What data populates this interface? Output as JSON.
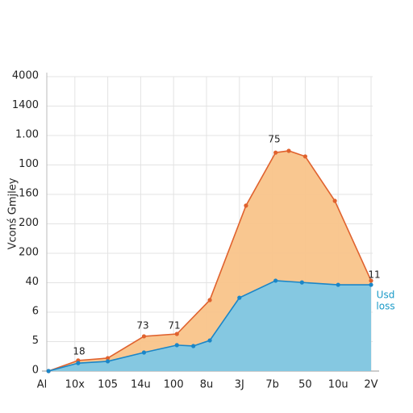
{
  "chart_data": {
    "type": "area",
    "y_label": "Vconś Gmjley",
    "xlim": [
      0,
      10
    ],
    "xticks": [
      {
        "value": 0,
        "label": "Al"
      },
      {
        "value": 1,
        "label": "10x"
      },
      {
        "value": 2,
        "label": "105"
      },
      {
        "value": 3,
        "label": "14u"
      },
      {
        "value": 4,
        "label": "100"
      },
      {
        "value": 5,
        "label": "8u"
      },
      {
        "value": 6,
        "label": "3J"
      },
      {
        "value": 7,
        "label": "7b"
      },
      {
        "value": 8,
        "label": "50"
      },
      {
        "value": 9,
        "label": "10u"
      },
      {
        "value": 10,
        "label": "2V"
      }
    ],
    "ylim": [
      0,
      10
    ],
    "yticks": [
      0,
      {
        "value": 1,
        "label": "5"
      },
      {
        "value": 2,
        "label": "6"
      },
      {
        "value": 3,
        "label": "40"
      },
      {
        "value": 4,
        "label": "200"
      },
      {
        "value": 5,
        "label": "200"
      },
      {
        "value": 6,
        "label": "160"
      },
      {
        "value": 7,
        "label": "100"
      },
      {
        "value": 8,
        "label": "1.00"
      },
      {
        "value": 9,
        "label": "1400"
      },
      {
        "value": 10,
        "label": "4000"
      }
    ],
    "grid": true,
    "series": [
      {
        "color": "#e0622e",
        "fill": "#f9c48a",
        "x": [
          0.2,
          1.1,
          2.0,
          3.1,
          4.1,
          5.1,
          6.2,
          7.1,
          7.5,
          8.0,
          8.9,
          10.0
        ],
        "values": [
          0,
          0.36,
          0.44,
          1.18,
          1.26,
          2.41,
          5.62,
          7.42,
          7.48,
          7.29,
          5.78,
          3.07
        ]
      },
      {
        "color": "#1a86c8",
        "fill": "#7ec8e6",
        "x": [
          0.2,
          1.1,
          2.0,
          3.1,
          4.1,
          4.6,
          5.1,
          6.0,
          7.1,
          7.9,
          9.0,
          10.0
        ],
        "values": [
          0,
          0.27,
          0.33,
          0.63,
          0.88,
          0.85,
          1.04,
          2.49,
          3.07,
          3.01,
          2.93,
          2.93
        ]
      }
    ],
    "annotations": [
      "18",
      "73",
      "71",
      "75",
      "11",
      "Usd",
      "loss"
    ]
  }
}
